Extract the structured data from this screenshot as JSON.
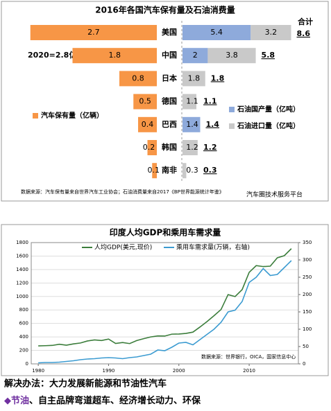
{
  "chart_data": [
    {
      "type": "bar",
      "title": "2016年各国汽车保有量及石油消费量",
      "categories": [
        "美国",
        "中国",
        "日本",
        "德国",
        "巴西",
        "韩国",
        "南非"
      ],
      "series": [
        {
          "name": "汽车保有量（亿辆）",
          "color": "#f79646",
          "values": [
            2.7,
            1.8,
            0.8,
            0.5,
            0.4,
            0.2,
            0.1
          ]
        },
        {
          "name": "石油国产量（亿吨）",
          "color": "#8eaadb",
          "values": [
            5.4,
            2.0,
            null,
            null,
            1.4,
            null,
            null
          ]
        },
        {
          "name": "石油进口量（亿吨）",
          "color": "#c9c9c9",
          "values": [
            3.2,
            3.8,
            1.8,
            1.1,
            null,
            1.2,
            0.3
          ]
        }
      ],
      "totals": {
        "label": "合计",
        "color": "#7030a0",
        "values": [
          8.6,
          5.8,
          1.8,
          1.1,
          1.4,
          1.2,
          0.3
        ]
      },
      "annotation": "2020=2.8亿",
      "source": "数据来源：汽车保有量来自世界汽车工业协会；石油消费量来自2017《BP世界能源统计年鉴》",
      "watermark": "汽车圈技术服务平台"
    },
    {
      "type": "line",
      "title": "印度人均GDP和乘用车需求量",
      "x": [
        1980,
        1981,
        1982,
        1983,
        1984,
        1985,
        1986,
        1987,
        1988,
        1989,
        1990,
        1991,
        1992,
        1993,
        1994,
        1995,
        1996,
        1997,
        1998,
        1999,
        2000,
        2001,
        2002,
        2003,
        2004,
        2005,
        2006,
        2007,
        2008,
        2009,
        2010,
        2011,
        2012,
        2013,
        2014,
        2015,
        2016
      ],
      "series": [
        {
          "name": "人均GDP(美元,现价)",
          "color": "#3b7d3b",
          "values": [
            267,
            270,
            274,
            291,
            277,
            296,
            310,
            340,
            355,
            347,
            368,
            303,
            317,
            301,
            346,
            374,
            400,
            415,
            413,
            441,
            443,
            452,
            471,
            547,
            628,
            715,
            807,
            1028,
            999,
            1102,
            1358,
            1458,
            1444,
            1450,
            1574,
            1606,
            1710
          ]
        },
        {
          "name": "乘用车需求量(万辆，右轴)",
          "color": "#3b9bd1",
          "axis": "y2",
          "values": [
            3,
            4,
            4,
            5,
            7,
            9,
            12,
            14,
            15,
            17,
            18,
            17,
            15,
            18,
            20,
            24,
            28,
            40,
            38,
            48,
            60,
            62,
            55,
            70,
            85,
            100,
            120,
            150,
            155,
            180,
            235,
            250,
            275,
            255,
            258,
            278,
            298
          ]
        }
      ],
      "xlim": [
        1979,
        2017
      ],
      "xticks": [
        1980,
        1990,
        2000,
        2010
      ],
      "ylim": [
        0,
        1800
      ],
      "yticks": [
        0,
        200,
        400,
        600,
        800,
        1000,
        1200,
        1400,
        1600,
        1800
      ],
      "y2lim": [
        0,
        350
      ],
      "y2ticks": [
        0,
        50,
        100,
        150,
        200,
        250,
        300,
        350
      ],
      "grid": true,
      "source": "数据来源：世界银行，OICA，国家信息中心"
    }
  ],
  "footer": {
    "heading": "解决办法：大力发展新能源和节油性汽车",
    "bullet_lead": "◆节油",
    "bullet_rest": "、自主品牌弯道超车、经济增长动力、环保"
  }
}
